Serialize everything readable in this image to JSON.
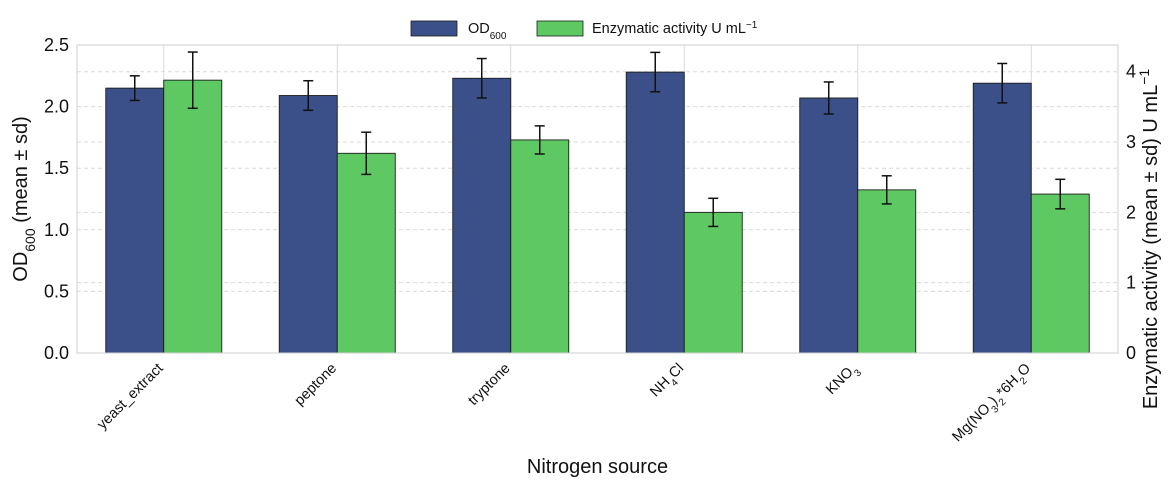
{
  "chart_data": {
    "type": "bar",
    "xlabel": "Nitrogen source",
    "ylabel_left": {
      "base": "OD",
      "sub": "600",
      "rest": " (mean ± sd)"
    },
    "ylabel_right": {
      "text": "Enzymatic activity (mean ± sd) U mL",
      "sup": "−1"
    },
    "ylim_left": [
      0,
      2.5
    ],
    "ylim_right": [
      0,
      4.38
    ],
    "yticks_left": [
      "0.0",
      "0.5",
      "1.0",
      "1.5",
      "2.0",
      "2.5"
    ],
    "yticks_right": [
      "0",
      "1",
      "2",
      "3",
      "4"
    ],
    "categories": [
      {
        "parts": [
          {
            "t": "yeast_extract"
          }
        ]
      },
      {
        "parts": [
          {
            "t": "peptone"
          }
        ]
      },
      {
        "parts": [
          {
            "t": "tryptone"
          }
        ]
      },
      {
        "parts": [
          {
            "t": "NH"
          },
          {
            "t": "4",
            "sub": true
          },
          {
            "t": "Cl"
          }
        ]
      },
      {
        "parts": [
          {
            "t": "KNO"
          },
          {
            "t": "3",
            "sub": true
          }
        ]
      },
      {
        "parts": [
          {
            "t": "Mg(NO"
          },
          {
            "t": "3",
            "sub": true
          },
          {
            "t": ")"
          },
          {
            "t": "2",
            "sub": true
          },
          {
            "t": "*6H"
          },
          {
            "t": "2",
            "sub": true
          },
          {
            "t": "O"
          }
        ]
      }
    ],
    "series": [
      {
        "name": "OD600",
        "legend_parts": [
          {
            "t": "OD"
          },
          {
            "t": "600",
            "sub": true
          }
        ],
        "axis": "left",
        "color": "#3b5089",
        "values": [
          2.15,
          2.09,
          2.23,
          2.28,
          2.07,
          2.19
        ],
        "errors": [
          0.1,
          0.12,
          0.16,
          0.16,
          0.13,
          0.16
        ]
      },
      {
        "name": "Enzymatic activity U mL−1",
        "legend_parts": [
          {
            "t": "Enzymatic activity U mL"
          },
          {
            "t": "−1",
            "sup": true
          }
        ],
        "axis": "right",
        "color": "#5ec963",
        "values": [
          3.88,
          2.84,
          3.03,
          2.0,
          2.32,
          2.26
        ],
        "errors": [
          0.4,
          0.3,
          0.2,
          0.2,
          0.2,
          0.21
        ]
      }
    ],
    "legend_position": "top-center"
  }
}
